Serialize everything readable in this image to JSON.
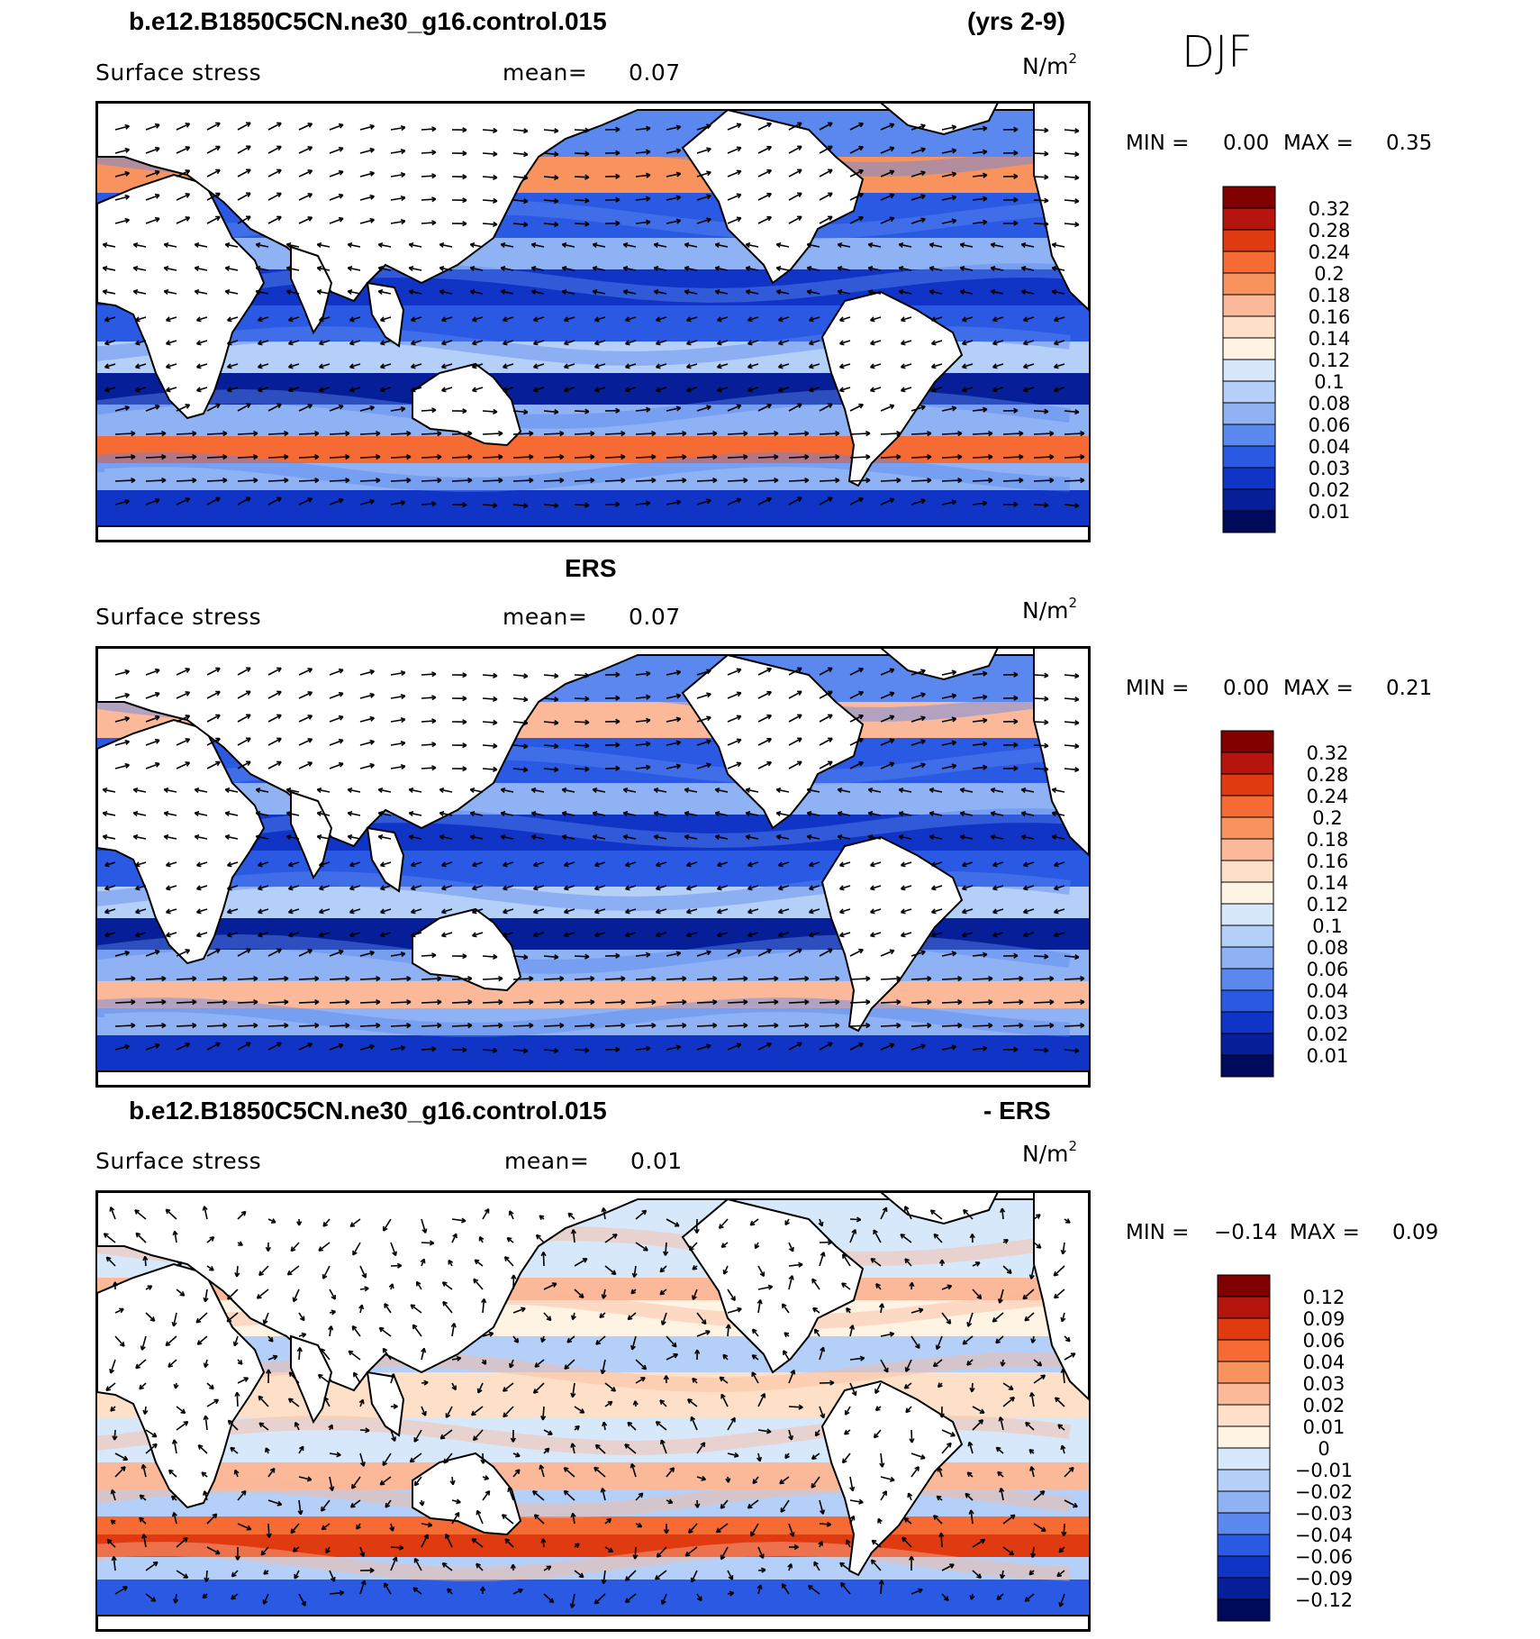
{
  "season": "DJF",
  "panels": [
    {
      "header_left": "b.e12.B1850C5CN.ne30_g16.control.015",
      "header_right": "(yrs 2-9)",
      "variable": "Surface stress",
      "mean_label": "mean=",
      "mean_value": "0.07",
      "units_base": "N/m",
      "units_exp": "2",
      "min_label": "MIN =",
      "min_value": "0.00",
      "max_label": "MAX =",
      "max_value": "0.35",
      "colorbar": {
        "labels": [
          "0.32",
          "0.28",
          "0.24",
          "0.2",
          "0.18",
          "0.16",
          "0.14",
          "0.12",
          "0.1",
          "0.08",
          "0.06",
          "0.04",
          "0.03",
          "0.02",
          "0.01"
        ],
        "colors": [
          "#800000",
          "#b5150d",
          "#e03a10",
          "#f66a33",
          "#f9935e",
          "#fbb99a",
          "#fde0c7",
          "#fff3e3",
          "#d7e8fb",
          "#b5d0f8",
          "#8fb2f4",
          "#5b88ee",
          "#2a5ae4",
          "#1035c6",
          "#061f99",
          "#000a5a"
        ]
      }
    },
    {
      "header_left": "ERS",
      "header_right": "",
      "variable": "Surface stress",
      "mean_label": "mean=",
      "mean_value": "0.07",
      "units_base": "N/m",
      "units_exp": "2",
      "min_label": "MIN =",
      "min_value": "0.00",
      "max_label": "MAX =",
      "max_value": "0.21",
      "colorbar": {
        "labels": [
          "0.32",
          "0.28",
          "0.24",
          "0.2",
          "0.18",
          "0.16",
          "0.14",
          "0.12",
          "0.1",
          "0.08",
          "0.06",
          "0.04",
          "0.03",
          "0.02",
          "0.01"
        ],
        "colors": [
          "#800000",
          "#b5150d",
          "#e03a10",
          "#f66a33",
          "#f9935e",
          "#fbb99a",
          "#fde0c7",
          "#fff3e3",
          "#d7e8fb",
          "#b5d0f8",
          "#8fb2f4",
          "#5b88ee",
          "#2a5ae4",
          "#1035c6",
          "#061f99",
          "#000a5a"
        ]
      }
    },
    {
      "header_left": "b.e12.B1850C5CN.ne30_g16.control.015",
      "header_right": "- ERS",
      "variable": "Surface stress",
      "mean_label": "mean=",
      "mean_value": "0.01",
      "units_base": "N/m",
      "units_exp": "2",
      "min_label": "MIN =",
      "min_value": "−0.14",
      "max_label": "MAX =",
      "max_value": "0.09",
      "colorbar": {
        "labels": [
          "0.12",
          "0.09",
          "0.06",
          "0.04",
          "0.03",
          "0.02",
          "0.01",
          "0",
          "−0.01",
          "−0.02",
          "−0.03",
          "−0.04",
          "−0.06",
          "−0.09",
          "−0.12"
        ],
        "colors": [
          "#800000",
          "#b5150d",
          "#e03a10",
          "#f66a33",
          "#f9935e",
          "#fbb99a",
          "#fde0c7",
          "#fff3e3",
          "#d7e8fb",
          "#b5d0f8",
          "#8fb2f4",
          "#5b88ee",
          "#2a5ae4",
          "#1035c6",
          "#061f99",
          "#000a5a"
        ]
      }
    }
  ]
}
